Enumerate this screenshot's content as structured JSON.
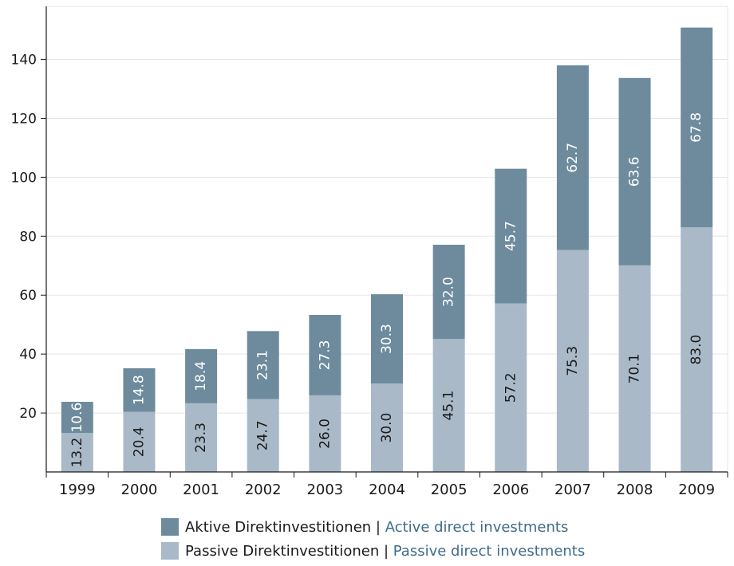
{
  "chart_data": {
    "type": "bar",
    "stacked": true,
    "categories": [
      "1999",
      "2000",
      "2001",
      "2002",
      "2003",
      "2004",
      "2005",
      "2006",
      "2007",
      "2008",
      "2009"
    ],
    "series": [
      {
        "name": "Passive Direktinvestitionen | Passive direct investments",
        "values": [
          13.2,
          20.4,
          23.3,
          24.7,
          26.0,
          30.0,
          45.1,
          57.2,
          75.3,
          70.1,
          83.0
        ]
      },
      {
        "name": "Aktive Direktinvestitionen | Active direct investments",
        "values": [
          10.6,
          14.8,
          18.4,
          23.1,
          27.3,
          30.3,
          32.0,
          45.7,
          62.7,
          63.6,
          67.8
        ]
      }
    ],
    "value_labels": {
      "passive": [
        "13.2",
        "20.4",
        "23.3",
        "24.7",
        "26.0",
        "30.0",
        "45.1",
        "57.2",
        "75.3",
        "70.1",
        "83.0"
      ],
      "active": [
        "10.6",
        "14.8",
        "18.4",
        "23.1",
        "27.3",
        "30.3",
        "32.0",
        "45.7",
        "62.7",
        "63.6",
        "67.8"
      ]
    },
    "ylim": [
      0,
      158
    ],
    "yticks": [
      20,
      40,
      60,
      80,
      100,
      120,
      140
    ],
    "ytick_labels": [
      "20",
      "40",
      "60",
      "80",
      "100",
      "120",
      "140"
    ],
    "grid": true,
    "legend_position": "bottom-center",
    "colors": {
      "active": "#6e8b9d",
      "passive": "#a9b9c8",
      "grid": "#e5e5e5",
      "axis": "#1a1a1a"
    }
  },
  "legend": {
    "active_de": "Aktive Direktinvestitionen | ",
    "active_en": "Active direct investments",
    "passive_de": "Passive Direktinvestitionen | ",
    "passive_en": "Passive direct investments"
  }
}
